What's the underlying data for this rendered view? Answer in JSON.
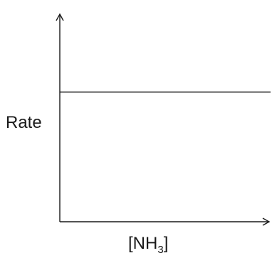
{
  "chart_data": {
    "type": "line",
    "title": "",
    "ylabel": "Rate",
    "xlabel_main": "[NH",
    "xlabel_subscript": "3",
    "xlabel_close": "]",
    "ticks": "none",
    "grid": false,
    "series": [
      {
        "points": [
          [
            0,
            1
          ],
          [
            1,
            1
          ]
        ]
      }
    ],
    "xlim": [
      0,
      1
    ],
    "ylim": [
      0,
      1.6
    ]
  },
  "colors": {
    "axis": "#1a1a1a",
    "line": "#1a1a1a"
  }
}
